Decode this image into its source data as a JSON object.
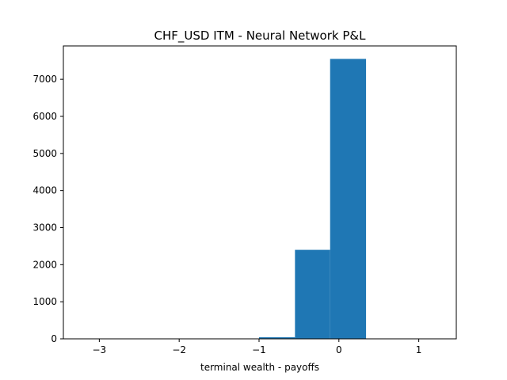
{
  "chart_data": {
    "type": "histogram",
    "title": "CHF_USD ITM - Neural Network P&L",
    "xlabel": "terminal wealth - payoffs",
    "ylabel": "",
    "xlim": [
      -3.45,
      1.47
    ],
    "ylim": [
      0,
      7900
    ],
    "bin_edges": [
      -3.23,
      -2.79,
      -2.34,
      -1.89,
      -1.45,
      -1.0,
      -0.55,
      -0.11,
      0.34,
      0.79,
      1.24
    ],
    "counts": [
      1,
      1,
      1,
      2,
      5,
      42,
      2400,
      7550,
      3,
      1
    ],
    "bar_color": "#1f77b4",
    "x_ticks": [
      {
        "value": -3,
        "label": "−3"
      },
      {
        "value": -2,
        "label": "−2"
      },
      {
        "value": -1,
        "label": "−1"
      },
      {
        "value": 0,
        "label": "0"
      },
      {
        "value": 1,
        "label": "1"
      }
    ],
    "y_ticks": [
      {
        "value": 0,
        "label": "0"
      },
      {
        "value": 1000,
        "label": "1000"
      },
      {
        "value": 2000,
        "label": "2000"
      },
      {
        "value": 3000,
        "label": "3000"
      },
      {
        "value": 4000,
        "label": "4000"
      },
      {
        "value": 5000,
        "label": "5000"
      },
      {
        "value": 6000,
        "label": "6000"
      },
      {
        "value": 7000,
        "label": "7000"
      }
    ],
    "grid": false
  }
}
